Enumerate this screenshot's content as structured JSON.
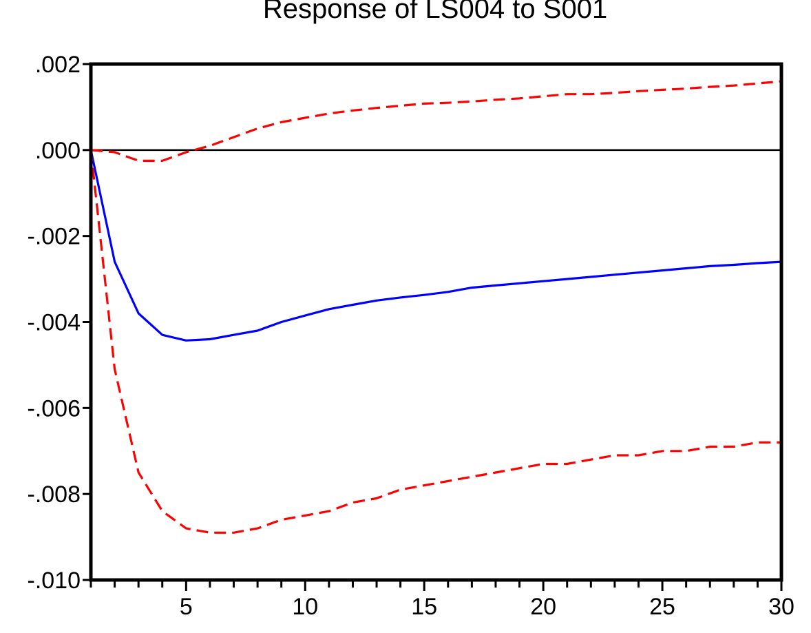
{
  "chart_data": {
    "type": "line",
    "title": "Response of LS004 to S001",
    "xlabel": "",
    "ylabel": "",
    "xlim": [
      1,
      30
    ],
    "ylim": [
      -0.01,
      0.002
    ],
    "x_ticks": [
      5,
      10,
      15,
      20,
      25,
      30
    ],
    "y_ticks": [
      0.002,
      0.0,
      -0.002,
      -0.004,
      -0.006,
      -0.008,
      -0.01
    ],
    "y_tick_labels": [
      ".002",
      ".000",
      "-.002",
      "-.004",
      "-.006",
      "-.008",
      "-.010"
    ],
    "zero_line": true,
    "grid": false,
    "legend": "none",
    "x": [
      1,
      2,
      3,
      4,
      5,
      6,
      7,
      8,
      9,
      10,
      11,
      12,
      13,
      14,
      15,
      16,
      17,
      18,
      19,
      20,
      21,
      22,
      23,
      24,
      25,
      26,
      27,
      28,
      29,
      30
    ],
    "series": [
      {
        "role": "response",
        "color": "#0000ff",
        "style": "solid",
        "values": [
          0.0,
          -0.0026,
          -0.0038,
          -0.0043,
          -0.00443,
          -0.0044,
          -0.0043,
          -0.0042,
          -0.004,
          -0.00385,
          -0.0037,
          -0.0036,
          -0.0035,
          -0.00343,
          -0.00337,
          -0.0033,
          -0.0032,
          -0.00315,
          -0.0031,
          -0.00305,
          -0.003,
          -0.00295,
          -0.0029,
          -0.00285,
          -0.0028,
          -0.00275,
          -0.0027,
          -0.00267,
          -0.00263,
          -0.0026
        ]
      },
      {
        "role": "upper-band",
        "color": "#ff0000",
        "style": "dashed",
        "values": [
          0.0,
          -5e-05,
          -0.00025,
          -0.00025,
          -5e-05,
          0.0001,
          0.0003,
          0.0005,
          0.00065,
          0.00075,
          0.00085,
          0.00092,
          0.00098,
          0.00103,
          0.00108,
          0.0011,
          0.00113,
          0.00117,
          0.0012,
          0.00125,
          0.0013,
          0.0013,
          0.00133,
          0.00137,
          0.0014,
          0.00143,
          0.00147,
          0.0015,
          0.00155,
          0.0016
        ]
      },
      {
        "role": "lower-band",
        "color": "#ff0000",
        "style": "dashed",
        "values": [
          0.0,
          -0.0051,
          -0.0075,
          -0.0084,
          -0.0088,
          -0.0089,
          -0.0089,
          -0.0088,
          -0.0086,
          -0.0085,
          -0.0084,
          -0.0082,
          -0.0081,
          -0.0079,
          -0.0078,
          -0.0077,
          -0.0076,
          -0.0075,
          -0.0074,
          -0.0073,
          -0.0073,
          -0.0072,
          -0.0071,
          -0.0071,
          -0.007,
          -0.007,
          -0.0069,
          -0.0069,
          -0.0068,
          -0.0068
        ]
      }
    ]
  }
}
